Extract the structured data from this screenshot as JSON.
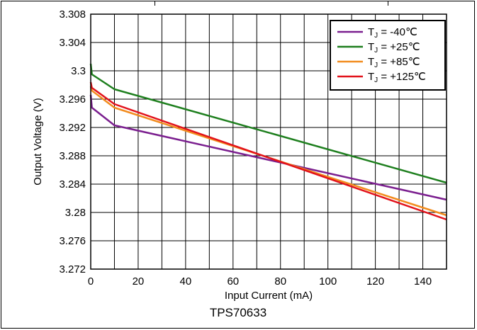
{
  "chart_data": {
    "type": "line",
    "title": "",
    "subtitle": "",
    "caption": "TPS70633",
    "xlabel": "Input Current (mA)",
    "ylabel": "Output Voltage (V)",
    "xlim": [
      0,
      150
    ],
    "ylim": [
      3.272,
      3.308
    ],
    "xticks": [
      "0",
      "20",
      "40",
      "60",
      "80",
      "100",
      "120",
      "140"
    ],
    "yticks": [
      "3.272",
      "3.276",
      "3.28",
      "3.284",
      "3.288",
      "3.292",
      "3.296",
      "3.3",
      "3.304",
      "3.308"
    ],
    "grid": true,
    "legend_position": "top-right",
    "series": [
      {
        "name": "T<sub>J</sub> = -40℃",
        "label_main": "T",
        "label_sub": "J",
        "label_rest": " = -40℃",
        "color": "#7B1F8F",
        "points": [
          [
            0,
            3.2966
          ],
          [
            0.5,
            3.2948
          ],
          [
            10,
            3.2923
          ],
          [
            150,
            3.2818
          ]
        ]
      },
      {
        "name": "T<sub>J</sub> = +25℃",
        "label_main": "T",
        "label_sub": "J",
        "label_rest": " = +25℃",
        "color": "#1E7F1E",
        "points": [
          [
            0,
            3.301
          ],
          [
            0.5,
            3.2995
          ],
          [
            10,
            3.2974
          ],
          [
            150,
            3.2842
          ]
        ]
      },
      {
        "name": "T<sub>J</sub> = +85℃",
        "label_main": "T",
        "label_sub": "J",
        "label_rest": " = +85℃",
        "color": "#F28C1E",
        "points": [
          [
            0,
            3.2978
          ],
          [
            0.5,
            3.2972
          ],
          [
            10,
            3.2948
          ],
          [
            150,
            3.2796
          ]
        ]
      },
      {
        "name": "T<sub>J</sub> = +125℃",
        "label_main": "T",
        "label_sub": "J",
        "label_rest": " = +125℃",
        "color": "#E2121B",
        "points": [
          [
            0,
            3.2984
          ],
          [
            0.5,
            3.2976
          ],
          [
            10,
            3.2953
          ],
          [
            150,
            3.279
          ]
        ]
      }
    ]
  }
}
